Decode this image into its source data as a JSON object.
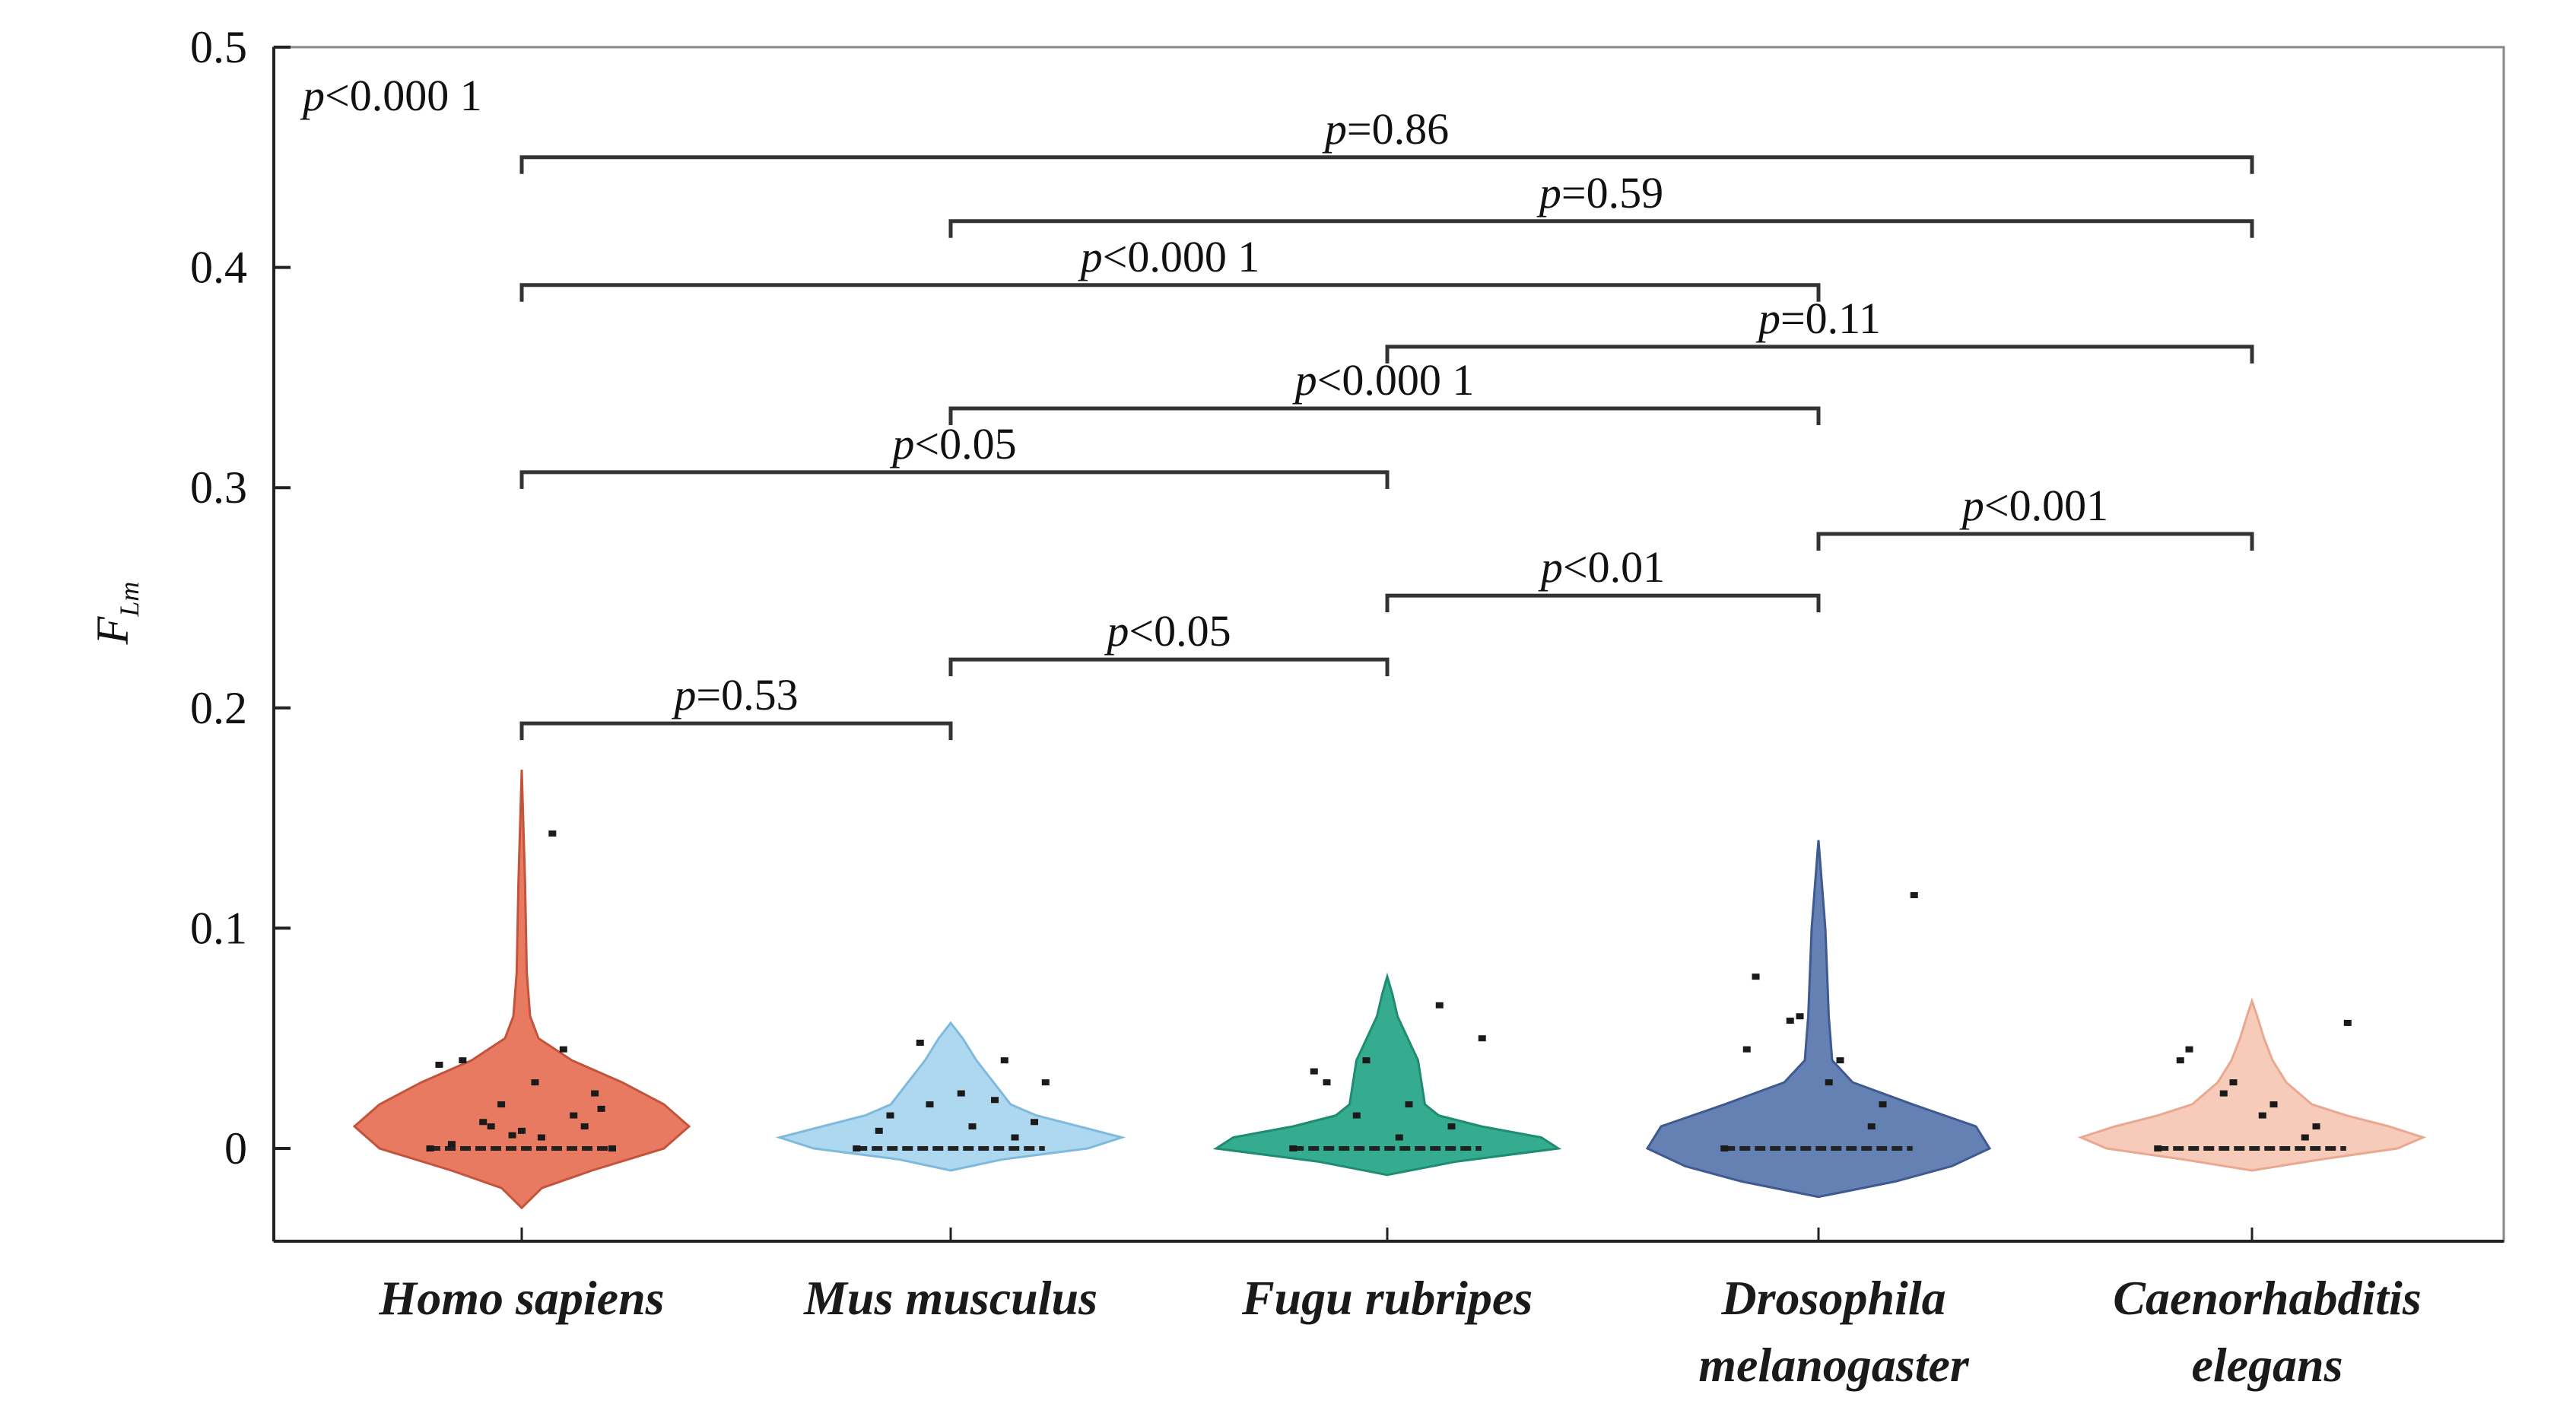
{
  "chart_data": {
    "type": "violin",
    "title": "",
    "xlabel": "",
    "ylabel": {
      "main": "F",
      "sub": "Lm"
    },
    "ylim": [
      -0.045,
      0.5
    ],
    "yticks": [
      0,
      0.1,
      0.2,
      0.3,
      0.4,
      0.5
    ],
    "ytick_labels": [
      "0",
      "0.1",
      "0.2",
      "0.3",
      "0.4",
      "0.5"
    ],
    "overall_test": "p<0.000 1",
    "categories": [
      {
        "lines": [
          "Homo sapiens"
        ],
        "color": "#e8735a",
        "edge": "#c4533c",
        "violin": {
          "min": -0.027,
          "max": 0.172,
          "profile": [
            [
              -0.027,
              0.0
            ],
            [
              -0.018,
              0.12
            ],
            [
              -0.01,
              0.42
            ],
            [
              0.0,
              0.85
            ],
            [
              0.01,
              1.0
            ],
            [
              0.02,
              0.85
            ],
            [
              0.03,
              0.6
            ],
            [
              0.04,
              0.3
            ],
            [
              0.05,
              0.1
            ],
            [
              0.06,
              0.05
            ],
            [
              0.08,
              0.03
            ],
            [
              0.12,
              0.02
            ],
            [
              0.172,
              0.0
            ]
          ]
        },
        "points": [
          [
            0.0005,
            0.0
          ],
          [
            0.002,
            0.01
          ],
          [
            -0.001,
            0.005
          ],
          [
            0.0,
            0.02
          ],
          [
            0.003,
            0.04
          ],
          [
            -0.002,
            0.0
          ],
          [
            0.001,
            0.015
          ],
          [
            0.004,
            0.03
          ],
          [
            0.0,
            0.01
          ],
          [
            0.002,
            0.002
          ],
          [
            -0.003,
            0.018
          ],
          [
            0.001,
            0.045
          ],
          [
            0.0,
            0.008
          ],
          [
            0.003,
            0.012
          ],
          [
            -0.001,
            0.038
          ],
          [
            0.002,
            0.025
          ],
          [
            0.0,
            0.143
          ],
          [
            0.001,
            0.006
          ]
        ]
      },
      {
        "lines": [
          "Mus musculus"
        ],
        "color": "#aad6ef",
        "edge": "#7fbadc",
        "violin": {
          "min": -0.01,
          "max": 0.057,
          "profile": [
            [
              -0.01,
              0.0
            ],
            [
              -0.005,
              0.3
            ],
            [
              0.0,
              0.8
            ],
            [
              0.005,
              1.0
            ],
            [
              0.01,
              0.75
            ],
            [
              0.015,
              0.5
            ],
            [
              0.02,
              0.35
            ],
            [
              0.03,
              0.25
            ],
            [
              0.04,
              0.15
            ],
            [
              0.05,
              0.07
            ],
            [
              0.057,
              0.0
            ]
          ]
        },
        "points": [
          [
            0.0,
            0.0
          ],
          [
            0.002,
            0.005
          ],
          [
            0.001,
            0.01
          ],
          [
            0.0,
            0.02
          ],
          [
            0.003,
            0.015
          ],
          [
            0.001,
            0.03
          ],
          [
            0.002,
            0.04
          ],
          [
            0.0,
            0.025
          ],
          [
            0.001,
            0.048
          ],
          [
            0.002,
            0.008
          ],
          [
            0.0,
            0.012
          ],
          [
            0.003,
            0.022
          ]
        ]
      },
      {
        "lines": [
          "Fugu rubripes"
        ],
        "color": "#2aa88a",
        "edge": "#1e8c72",
        "violin": {
          "min": -0.012,
          "max": 0.078,
          "profile": [
            [
              -0.012,
              0.0
            ],
            [
              -0.006,
              0.4
            ],
            [
              0.0,
              1.0
            ],
            [
              0.005,
              0.9
            ],
            [
              0.01,
              0.55
            ],
            [
              0.015,
              0.3
            ],
            [
              0.02,
              0.22
            ],
            [
              0.03,
              0.2
            ],
            [
              0.04,
              0.18
            ],
            [
              0.05,
              0.12
            ],
            [
              0.06,
              0.06
            ],
            [
              0.07,
              0.03
            ],
            [
              0.078,
              0.0
            ]
          ]
        },
        "points": [
          [
            0.0,
            0.0
          ],
          [
            0.002,
            0.01
          ],
          [
            0.001,
            0.02
          ],
          [
            0.0,
            0.04
          ],
          [
            0.003,
            0.03
          ],
          [
            0.001,
            0.05
          ],
          [
            0.0,
            0.065
          ],
          [
            0.002,
            0.005
          ],
          [
            0.001,
            0.015
          ],
          [
            0.0,
            0.035
          ]
        ]
      },
      {
        "lines": [
          "Drosophila",
          "melanogaster"
        ],
        "color": "#5d7ab0",
        "edge": "#3f5a90",
        "violin": {
          "min": -0.022,
          "max": 0.14,
          "profile": [
            [
              -0.022,
              0.0
            ],
            [
              -0.015,
              0.45
            ],
            [
              -0.008,
              0.78
            ],
            [
              0.0,
              1.0
            ],
            [
              0.01,
              0.92
            ],
            [
              0.02,
              0.55
            ],
            [
              0.03,
              0.2
            ],
            [
              0.04,
              0.08
            ],
            [
              0.06,
              0.06
            ],
            [
              0.08,
              0.05
            ],
            [
              0.1,
              0.04
            ],
            [
              0.12,
              0.02
            ],
            [
              0.14,
              0.0
            ]
          ]
        },
        "points": [
          [
            0.0,
            0.0
          ],
          [
            0.002,
            0.02
          ],
          [
            0.001,
            0.04
          ],
          [
            0.003,
            0.06
          ],
          [
            0.0,
            0.078
          ],
          [
            0.002,
            0.115
          ],
          [
            0.001,
            0.01
          ],
          [
            0.0,
            0.03
          ],
          [
            0.004,
            0.058
          ],
          [
            0.002,
            0.045
          ]
        ]
      },
      {
        "lines": [
          "Caenorhabditis",
          "elegans"
        ],
        "color": "#f6c8b5",
        "edge": "#e9a890",
        "violin": {
          "min": -0.01,
          "max": 0.067,
          "profile": [
            [
              -0.01,
              0.0
            ],
            [
              -0.005,
              0.4
            ],
            [
              0.0,
              0.85
            ],
            [
              0.005,
              1.0
            ],
            [
              0.01,
              0.8
            ],
            [
              0.015,
              0.55
            ],
            [
              0.02,
              0.35
            ],
            [
              0.03,
              0.2
            ],
            [
              0.04,
              0.12
            ],
            [
              0.05,
              0.07
            ],
            [
              0.06,
              0.03
            ],
            [
              0.067,
              0.0
            ]
          ]
        },
        "points": [
          [
            0.0,
            0.0
          ],
          [
            0.002,
            0.01
          ],
          [
            0.001,
            0.02
          ],
          [
            0.003,
            0.03
          ],
          [
            0.0,
            0.045
          ],
          [
            0.002,
            0.057
          ],
          [
            0.001,
            0.005
          ],
          [
            0.0,
            0.015
          ],
          [
            0.004,
            0.025
          ],
          [
            0.002,
            0.04
          ]
        ]
      }
    ],
    "comparisons": [
      {
        "from": 0,
        "to": 1,
        "y": 0.193,
        "label": "p=0.53"
      },
      {
        "from": 1,
        "to": 2,
        "y": 0.222,
        "label": "p<0.05"
      },
      {
        "from": 2,
        "to": 3,
        "y": 0.251,
        "label": "p<0.01"
      },
      {
        "from": 3,
        "to": 4,
        "y": 0.279,
        "label": "p<0.001"
      },
      {
        "from": 0,
        "to": 2,
        "y": 0.307,
        "label": "p<0.05"
      },
      {
        "from": 1,
        "to": 3,
        "y": 0.336,
        "label": "p<0.000 1"
      },
      {
        "from": 2,
        "to": 4,
        "y": 0.364,
        "label": "p=0.11"
      },
      {
        "from": 0,
        "to": 3,
        "y": 0.392,
        "label": "p<0.000 1"
      },
      {
        "from": 1,
        "to": 4,
        "y": 0.421,
        "label": "p=0.59"
      },
      {
        "from": 0,
        "to": 4,
        "y": 0.45,
        "label": "p=0.86"
      }
    ]
  }
}
